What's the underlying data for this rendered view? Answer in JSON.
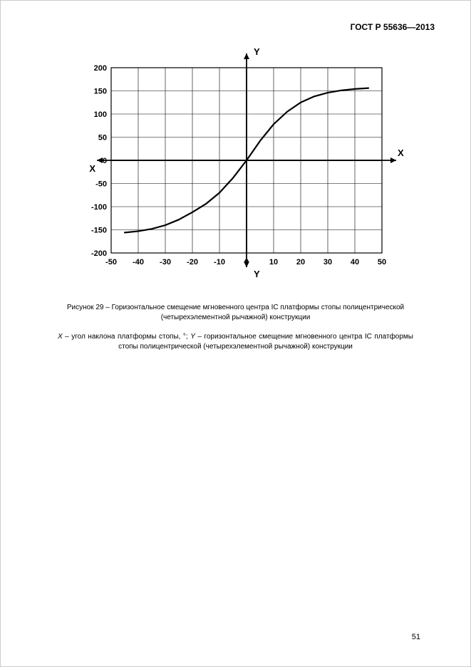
{
  "document": {
    "header": "ГОСТ Р 55636—2013",
    "page_number": "51"
  },
  "chart": {
    "type": "line",
    "title_top": "Y",
    "title_bottom": "Y",
    "title_left": "X",
    "title_right": "X",
    "xlim": [
      -50,
      50
    ],
    "ylim": [
      -200,
      200
    ],
    "xtick_step": 10,
    "ytick_step": 50,
    "xtick_labels": [
      "-50",
      "-40",
      "-30",
      "-20",
      "-10",
      "0",
      "10",
      "20",
      "30",
      "40",
      "50"
    ],
    "ytick_labels": [
      "-200",
      "-150",
      "-100",
      "-50",
      "0",
      "50",
      "100",
      "150",
      "200"
    ],
    "plot_background": "#ffffff",
    "grid_color": "#000000",
    "grid_width": 0.6,
    "axis_color": "#000000",
    "axis_width": 1.8,
    "curve_color": "#000000",
    "curve_width": 2.2,
    "tick_fontsize": 11,
    "axis_label_fontsize": 13,
    "axis_label_weight": "bold",
    "arrow_size": 8,
    "data_points": [
      {
        "x": -45,
        "y": -156
      },
      {
        "x": -40,
        "y": -153
      },
      {
        "x": -35,
        "y": -148
      },
      {
        "x": -30,
        "y": -140
      },
      {
        "x": -25,
        "y": -128
      },
      {
        "x": -20,
        "y": -112
      },
      {
        "x": -15,
        "y": -94
      },
      {
        "x": -10,
        "y": -70
      },
      {
        "x": -5,
        "y": -38
      },
      {
        "x": 0,
        "y": 0
      },
      {
        "x": 5,
        "y": 42
      },
      {
        "x": 10,
        "y": 78
      },
      {
        "x": 15,
        "y": 105
      },
      {
        "x": 20,
        "y": 125
      },
      {
        "x": 25,
        "y": 138
      },
      {
        "x": 30,
        "y": 146
      },
      {
        "x": 35,
        "y": 151
      },
      {
        "x": 40,
        "y": 154
      },
      {
        "x": 45,
        "y": 156
      }
    ]
  },
  "caption": {
    "text": "Рисунок 29 – Горизонтальное смещение мгновенного центра IC платформы стопы полицентрической (четырехэлементной рычажной) конструкции"
  },
  "legend": {
    "x_var": "X",
    "x_desc": " – угол наклона платформы стопы, °; ",
    "y_var": "Y",
    "y_desc": " –      горизонтальное  смещение  мгновенного  центра IC платформы стопы полицентрической (четырехэлементной рычажной) конструкции"
  }
}
